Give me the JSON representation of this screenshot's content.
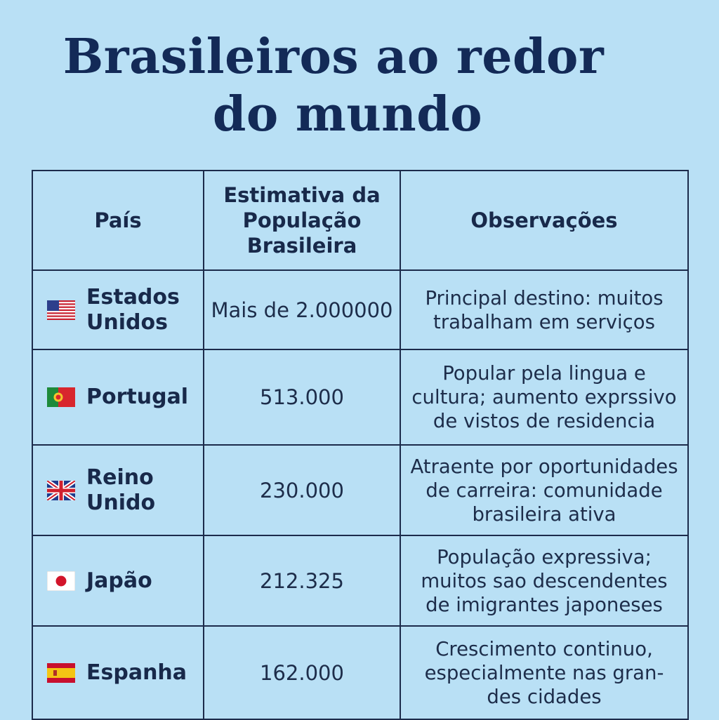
{
  "title": {
    "line1": "Brasileiros ao redor",
    "line2": "do mundo"
  },
  "table": {
    "headers": [
      "País",
      "Estimativa da População Brasileira",
      "Observações"
    ],
    "rows": [
      {
        "flag": "usa-flag-icon",
        "country": "Estados Unidos",
        "population": "Mais de 2.000000",
        "notes": "Principal destino: muitos trabalham em serviços"
      },
      {
        "flag": "portugal-flag-icon",
        "country": "Portugal",
        "population": "513.000",
        "notes": "Popular pela lingua e cultura; aumento exprssivo de vistos de residencia"
      },
      {
        "flag": "uk-flag-icon",
        "country": "Reino Unido",
        "population": "230.000",
        "notes": "Atraente por oportunidades de carreira: comunidade brasileira ativa"
      },
      {
        "flag": "japan-flag-icon",
        "country": "Japão",
        "population": "212.325",
        "notes": "População expressiva; muitos sao descendentes de imigrantes japoneses"
      },
      {
        "flag": "spain-flag-icon",
        "country": "Espanha",
        "population": "162.000",
        "notes": "Crescimento continuo, especialmente nas gran- des cidades"
      }
    ]
  },
  "colors": {
    "background": "#b9e0f5",
    "title": "#132a57",
    "border": "#1c2b4b"
  }
}
